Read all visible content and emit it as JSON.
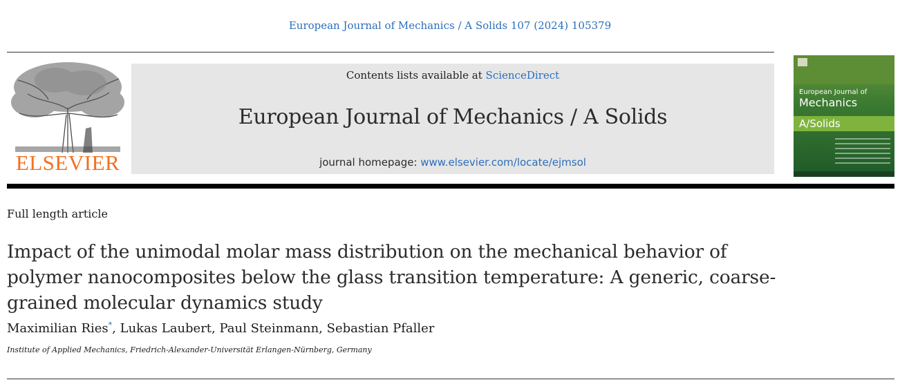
{
  "citation": "European Journal of Mechanics / A Solids 107 (2024) 105379",
  "publisher": {
    "logo_text": "ELSEVIER",
    "logo_color": "#f37021"
  },
  "banner": {
    "contents_prefix": "Contents lists available at ",
    "contents_link": "ScienceDirect",
    "journal_title": "European Journal of Mechanics / A Solids",
    "homepage_prefix": "journal homepage: ",
    "homepage_link": "www.elsevier.com/locate/ejmsol"
  },
  "cover": {
    "line1": "European Journal of",
    "line2": "Mechanics",
    "line3": "A/Solids"
  },
  "article": {
    "type": "Full length article",
    "title": "Impact of the unimodal molar mass distribution on the mechanical behavior of polymer nanocomposites below the glass transition temperature: A generic, coarse-grained molecular dynamics study",
    "authors": [
      {
        "name": "Maximilian Ries",
        "mark": "*",
        "sep": ", "
      },
      {
        "name": "Lukas Laubert",
        "mark": "",
        "sep": ", "
      },
      {
        "name": "Paul Steinmann",
        "mark": "",
        "sep": ", "
      },
      {
        "name": "Sebastian Pfaller",
        "mark": "",
        "sep": ""
      }
    ],
    "affiliation": "Institute of Applied Mechanics, Friedrich-Alexander-Universität Erlangen-Nürnberg, Germany"
  },
  "colors": {
    "link": "#2a6ebb",
    "banner_bg": "#e6e6e6"
  }
}
